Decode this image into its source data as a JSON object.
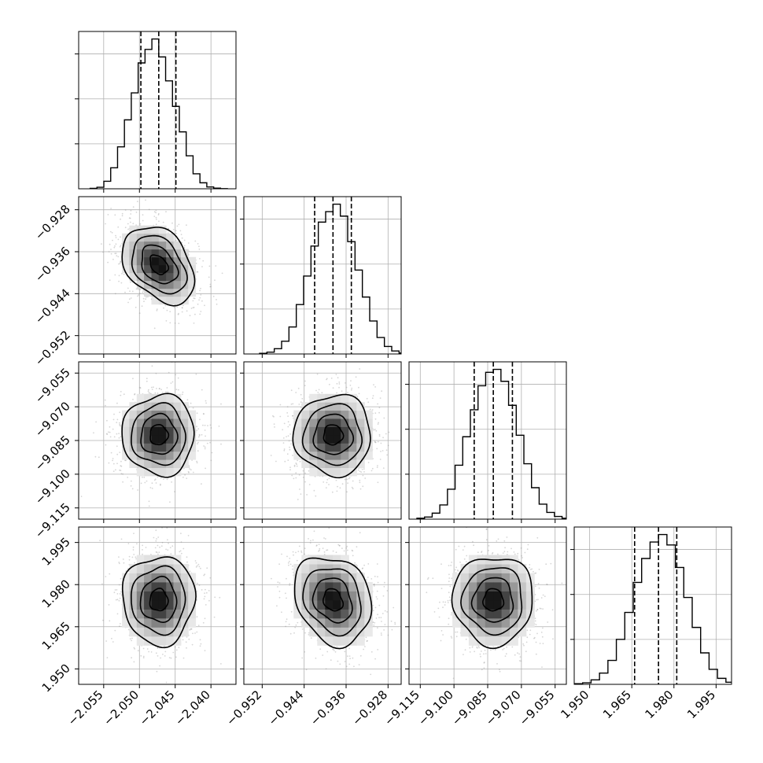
{
  "chart_data": {
    "type": "corner",
    "parameters": [
      {
        "range": [
          -2.0585,
          -2.0365
        ],
        "ticks": [
          -2.055,
          -2.05,
          -2.045,
          -2.04
        ],
        "tick_labels": [
          "−2.055",
          "−2.050",
          "−2.045",
          "−2.040"
        ],
        "median": -2.0473,
        "q16": -2.0498,
        "q84": -2.0449,
        "sigma": 0.0024
      },
      {
        "range": [
          -0.9555,
          -0.9255
        ],
        "ticks": [
          -0.952,
          -0.944,
          -0.936,
          -0.928
        ],
        "tick_labels": [
          "−0.952",
          "−0.944",
          "−0.936",
          "−0.928"
        ],
        "median": -0.9385,
        "q16": -0.942,
        "q84": -0.935,
        "sigma": 0.0035
      },
      {
        "range": [
          -9.12,
          -9.05
        ],
        "ticks": [
          -9.115,
          -9.1,
          -9.085,
          -9.07,
          -9.055
        ],
        "tick_labels": [
          "−9.115",
          "−9.100",
          "−9.085",
          "−9.070",
          "−9.055"
        ],
        "median": -9.0825,
        "q16": -9.091,
        "q84": -9.074,
        "sigma": 0.0085
      },
      {
        "range": [
          1.9445,
          2.0005
        ],
        "ticks": [
          1.95,
          1.965,
          1.98,
          1.995
        ],
        "tick_labels": [
          "1.950",
          "1.965",
          "1.980",
          "1.995"
        ],
        "median": 1.9745,
        "q16": 1.966,
        "q84": 1.981,
        "sigma": 0.0075
      }
    ],
    "histograms": [
      [
        0.003,
        0.01,
        0.05,
        0.14,
        0.28,
        0.46,
        0.64,
        0.84,
        0.93,
        1.0,
        0.88,
        0.72,
        0.55,
        0.38,
        0.22,
        0.1,
        0.04,
        0.012,
        0.004,
        0.001
      ],
      [
        0.004,
        0.012,
        0.035,
        0.085,
        0.18,
        0.33,
        0.52,
        0.72,
        0.88,
        0.95,
        1.0,
        0.92,
        0.75,
        0.56,
        0.38,
        0.22,
        0.11,
        0.05,
        0.02,
        0.006
      ],
      [
        0.006,
        0.014,
        0.04,
        0.095,
        0.2,
        0.36,
        0.55,
        0.73,
        0.89,
        0.98,
        1.0,
        0.92,
        0.76,
        0.56,
        0.37,
        0.21,
        0.1,
        0.045,
        0.018,
        0.006
      ],
      [
        0.004,
        0.01,
        0.03,
        0.075,
        0.16,
        0.3,
        0.48,
        0.68,
        0.84,
        0.95,
        1.0,
        0.93,
        0.78,
        0.58,
        0.38,
        0.21,
        0.1,
        0.04,
        0.014,
        0.004
      ]
    ],
    "histogram_ylim": [
      0,
      1.05
    ],
    "correlations": {
      "1_0": -0.35,
      "2_0": 0.0,
      "2_1": 0.0,
      "3_0": 0.0,
      "3_1": -0.2,
      "3_2": 0.0
    },
    "contour_levels_sigma": [
      0.5,
      1.0,
      1.5,
      2.0
    ],
    "quantile_lines": "dashed",
    "grid": true,
    "legend": "none"
  }
}
